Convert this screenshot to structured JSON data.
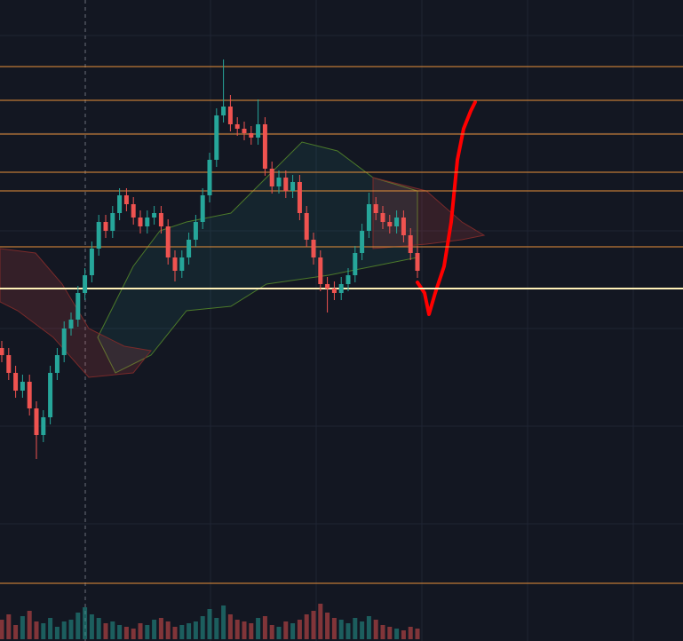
{
  "chart_data": {
    "type": "candlestick",
    "ylim": [
      0,
      722
    ],
    "open": [
      330,
      322,
      302,
      282,
      292,
      262,
      232,
      252,
      302,
      322,
      352,
      362,
      392,
      412,
      442,
      472,
      462,
      482,
      502,
      492,
      477,
      467,
      477,
      482,
      467,
      432,
      417,
      432,
      452,
      472,
      502,
      542,
      592,
      602,
      582,
      577,
      572,
      567,
      582,
      532,
      512,
      522,
      507,
      517,
      482,
      452,
      432,
      402,
      397,
      392,
      402,
      412,
      437,
      462,
      492,
      482,
      472,
      467,
      477,
      457,
      437
    ],
    "high": [
      338,
      330,
      310,
      300,
      300,
      270,
      260,
      310,
      330,
      360,
      370,
      400,
      420,
      450,
      480,
      480,
      490,
      510,
      510,
      500,
      485,
      485,
      490,
      490,
      475,
      440,
      440,
      460,
      480,
      510,
      550,
      600,
      655,
      615,
      590,
      585,
      580,
      610,
      590,
      540,
      530,
      530,
      525,
      525,
      490,
      460,
      440,
      410,
      405,
      410,
      420,
      445,
      470,
      505,
      500,
      490,
      480,
      485,
      485,
      465,
      445
    ],
    "low": [
      314,
      294,
      274,
      274,
      254,
      205,
      224,
      244,
      294,
      314,
      344,
      354,
      384,
      404,
      434,
      454,
      454,
      474,
      484,
      469,
      459,
      459,
      469,
      459,
      424,
      405,
      409,
      424,
      444,
      464,
      494,
      534,
      584,
      574,
      569,
      564,
      559,
      559,
      524,
      504,
      504,
      499,
      499,
      474,
      444,
      424,
      394,
      370,
      384,
      384,
      394,
      404,
      429,
      454,
      474,
      464,
      459,
      459,
      449,
      429,
      409
    ],
    "close": [
      322,
      302,
      282,
      292,
      262,
      232,
      252,
      302,
      322,
      352,
      362,
      392,
      412,
      442,
      472,
      462,
      482,
      502,
      492,
      477,
      467,
      477,
      482,
      467,
      432,
      417,
      432,
      452,
      472,
      502,
      542,
      592,
      602,
      582,
      577,
      572,
      567,
      582,
      532,
      512,
      522,
      507,
      517,
      482,
      452,
      432,
      402,
      397,
      392,
      402,
      412,
      437,
      462,
      492,
      482,
      472,
      467,
      477,
      457,
      437,
      417
    ],
    "volume": [
      55,
      70,
      40,
      65,
      80,
      50,
      45,
      60,
      35,
      50,
      55,
      75,
      90,
      70,
      60,
      45,
      50,
      40,
      35,
      30,
      45,
      40,
      55,
      60,
      50,
      35,
      40,
      45,
      50,
      65,
      85,
      60,
      95,
      70,
      55,
      50,
      45,
      60,
      65,
      40,
      35,
      50,
      45,
      55,
      70,
      80,
      100,
      75,
      60,
      55,
      45,
      60,
      50,
      65,
      55,
      40,
      35,
      30,
      25,
      35,
      30
    ],
    "y2lim": [
      0,
      100
    ],
    "levels": [
      647,
      609,
      571,
      528,
      507,
      444,
      397,
      65
    ],
    "colors": {
      "up": "#26a69a",
      "down": "#ef5350",
      "level": "#e8913a",
      "key_level": "#fff1b8"
    }
  }
}
